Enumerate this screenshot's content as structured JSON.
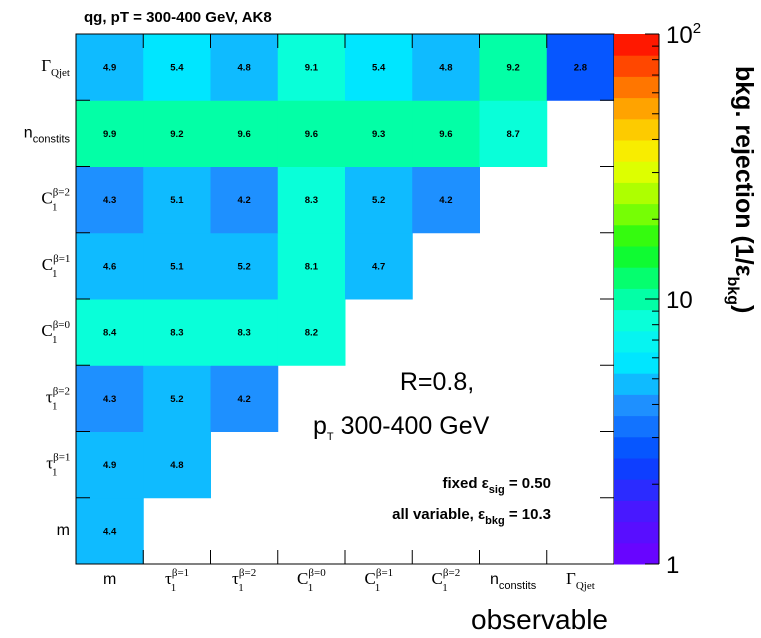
{
  "title": "qg, pT = 300-400 GeV, AK8",
  "annotations": {
    "radius": "R=0.8,",
    "pt_main": "p",
    "pt_sub": "T",
    "pt_rest": " 300-400 GeV",
    "fixed_prefix": "fixed  ε",
    "fixed_sub": "sig",
    "fixed_value": " = 0.50",
    "all_prefix": "all variable, ε",
    "all_sub": "bkg",
    "all_value": " = 10.3"
  },
  "z_axis": {
    "label_main": "bkg. rejection (1/ε",
    "label_sub": "bkg",
    "label_end": ")",
    "ticks": [
      {
        "value": 1,
        "base": "1",
        "exp": ""
      },
      {
        "value": 10,
        "base": "10",
        "exp": ""
      },
      {
        "value": 100,
        "base": "10",
        "exp": "2"
      }
    ]
  },
  "chart_data": {
    "type": "heatmap",
    "title": "qg, pT = 300-400 GeV, AK8",
    "xlabel": "observable",
    "ylabel": "",
    "zlabel": "bkg. rejection (1/ε_bkg)",
    "z_range": [
      1,
      100
    ],
    "z_scale": "log",
    "colormap": "ROOT rainbow (purple → blue → cyan → green → yellow → orange → red)",
    "observables": [
      {
        "key": "m",
        "main": "m",
        "sup": "",
        "sub": ""
      },
      {
        "key": "tau1_b1",
        "main": "τ",
        "sup": "β=1",
        "sub": "1"
      },
      {
        "key": "tau1_b2",
        "main": "τ",
        "sup": "β=2",
        "sub": "1"
      },
      {
        "key": "C1_b0",
        "main": "C",
        "sup": "β=0",
        "sub": "1"
      },
      {
        "key": "C1_b1",
        "main": "C",
        "sup": "β=1",
        "sub": "1"
      },
      {
        "key": "C1_b2",
        "main": "C",
        "sup": "β=2",
        "sub": "1"
      },
      {
        "key": "nconstits",
        "main": "n",
        "sup": "",
        "sub": "constits"
      },
      {
        "key": "GammaQjet",
        "main": "Γ",
        "sup": "",
        "sub": "Qjet"
      }
    ],
    "cells": [
      {
        "x": "m",
        "y": "m",
        "value": 4.4
      },
      {
        "x": "m",
        "y": "tau1_b1",
        "value": 4.9
      },
      {
        "x": "tau1_b1",
        "y": "tau1_b1",
        "value": 4.8
      },
      {
        "x": "m",
        "y": "tau1_b2",
        "value": 4.3
      },
      {
        "x": "tau1_b1",
        "y": "tau1_b2",
        "value": 5.2
      },
      {
        "x": "tau1_b2",
        "y": "tau1_b2",
        "value": 4.2
      },
      {
        "x": "m",
        "y": "C1_b0",
        "value": 8.4
      },
      {
        "x": "tau1_b1",
        "y": "C1_b0",
        "value": 8.3
      },
      {
        "x": "tau1_b2",
        "y": "C1_b0",
        "value": 8.3
      },
      {
        "x": "C1_b0",
        "y": "C1_b0",
        "value": 8.2
      },
      {
        "x": "m",
        "y": "C1_b1",
        "value": 4.6
      },
      {
        "x": "tau1_b1",
        "y": "C1_b1",
        "value": 5.1
      },
      {
        "x": "tau1_b2",
        "y": "C1_b1",
        "value": 5.2
      },
      {
        "x": "C1_b0",
        "y": "C1_b1",
        "value": 8.1
      },
      {
        "x": "C1_b1",
        "y": "C1_b1",
        "value": 4.7
      },
      {
        "x": "m",
        "y": "C1_b2",
        "value": 4.3
      },
      {
        "x": "tau1_b1",
        "y": "C1_b2",
        "value": 5.1
      },
      {
        "x": "tau1_b2",
        "y": "C1_b2",
        "value": 4.2
      },
      {
        "x": "C1_b0",
        "y": "C1_b2",
        "value": 8.3
      },
      {
        "x": "C1_b1",
        "y": "C1_b2",
        "value": 5.2
      },
      {
        "x": "C1_b2",
        "y": "C1_b2",
        "value": 4.2
      },
      {
        "x": "m",
        "y": "nconstits",
        "value": 9.9
      },
      {
        "x": "tau1_b1",
        "y": "nconstits",
        "value": 9.2
      },
      {
        "x": "tau1_b2",
        "y": "nconstits",
        "value": 9.6
      },
      {
        "x": "C1_b0",
        "y": "nconstits",
        "value": 9.6
      },
      {
        "x": "C1_b1",
        "y": "nconstits",
        "value": 9.3
      },
      {
        "x": "C1_b2",
        "y": "nconstits",
        "value": 9.6
      },
      {
        "x": "nconstits",
        "y": "nconstits",
        "value": 8.7
      },
      {
        "x": "m",
        "y": "GammaQjet",
        "value": 4.9
      },
      {
        "x": "tau1_b1",
        "y": "GammaQjet",
        "value": 5.4
      },
      {
        "x": "tau1_b2",
        "y": "GammaQjet",
        "value": 4.8
      },
      {
        "x": "C1_b0",
        "y": "GammaQjet",
        "value": 9.1
      },
      {
        "x": "C1_b1",
        "y": "GammaQjet",
        "value": 5.4
      },
      {
        "x": "C1_b2",
        "y": "GammaQjet",
        "value": 4.8
      },
      {
        "x": "nconstits",
        "y": "GammaQjet",
        "value": 9.2
      },
      {
        "x": "GammaQjet",
        "y": "GammaQjet",
        "value": 2.8
      }
    ]
  }
}
